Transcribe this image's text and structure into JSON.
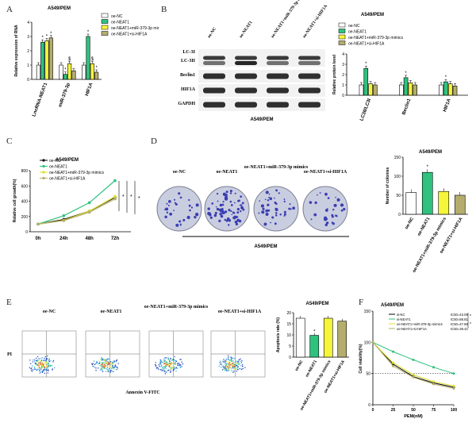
{
  "colors": {
    "nc": "#ffffff",
    "neat1": "#2ec27e",
    "mimics": "#f5f53a",
    "si": "#b5ad6e",
    "blot": "#1a1a1a",
    "dish": "#c9cde0",
    "dots": "#3a3fb0"
  },
  "panel_letters": [
    "A",
    "B",
    "C",
    "D",
    "E",
    "F"
  ],
  "legend4": [
    "oe-NC",
    "oe-NEAT1",
    "oe-NEAT1+miR-379-3p mimics",
    "oe-NEAT1+si-HIF1A"
  ],
  "legendF": [
    "si-NC",
    "si-NEAT1",
    "oe-NEAT1+miR-379-3p mimics",
    "oe-NEAT1+si-HIF1A"
  ],
  "ic50": [
    "IC50=43.08",
    "IC50=88.81",
    "IC50=47.88",
    "IC50=39.41"
  ],
  "panelB": {
    "col_labels": [
      "oe-NC",
      "oe-NEAT1",
      "oe-NEAT1+miR-379-3p mimics",
      "oe-NEAT1+si-HIF1A"
    ],
    "row_labels": [
      "LC-3I",
      "LC-3II",
      "Beclin1",
      "HIF1A",
      "GAPDH"
    ],
    "caption": "A549/PEM"
  },
  "panelD": {
    "dish_labels": [
      "oe-NC",
      "oe-NEAT1",
      "oe-NEAT1+miR-379-3p mimics",
      "oe-NEAT1+si-HIF1A"
    ],
    "caption": "A549/PEM"
  },
  "panelE": {
    "labels": [
      "oe-NC",
      "oe-NEAT1",
      "oe-NEAT1+miR-379-3p mimics",
      "oe-NEAT1+si-HIF1A"
    ],
    "xaxis": "Annexin V-FITC",
    "yaxis": "PI"
  },
  "chart_data": [
    {
      "id": "A",
      "type": "bar",
      "title": "A549/PEM",
      "ylabel": "Relative expression of RNA",
      "ylim": [
        0,
        4
      ],
      "yticks": [
        0,
        1,
        2,
        3,
        4
      ],
      "categories": [
        "LncRNA-NEAT1",
        "miR-379-3p",
        "HIF1A"
      ],
      "series": [
        {
          "name": "oe-NC",
          "values": [
            1.0,
            1.0,
            1.0
          ]
        },
        {
          "name": "oe-NEAT1",
          "values": [
            2.6,
            0.35,
            3.0
          ]
        },
        {
          "name": "oe-NEAT1+miR-379-3p mimics",
          "values": [
            2.7,
            1.1,
            1.1
          ]
        },
        {
          "name": "oe-NEAT1+si-HIF1A",
          "values": [
            2.9,
            0.6,
            0.5
          ]
        }
      ],
      "annotations": [
        "*",
        "*",
        "*",
        "*",
        "$",
        "*",
        "$",
        "*"
      ]
    },
    {
      "id": "B",
      "type": "bar",
      "title": "A549/PEM",
      "ylabel": "Relative protein level",
      "ylim": [
        0,
        4
      ],
      "yticks": [
        0,
        1,
        2,
        3,
        4
      ],
      "categories": [
        "LC3II/LC3I",
        "Beclin1",
        "HIF1A"
      ],
      "series": [
        {
          "name": "oe-NC",
          "values": [
            1.0,
            1.0,
            1.0
          ]
        },
        {
          "name": "oe-NEAT1",
          "values": [
            2.6,
            1.7,
            1.3
          ]
        },
        {
          "name": "oe-NEAT1+miR-379-3p mimics",
          "values": [
            1.1,
            1.2,
            1.1
          ]
        },
        {
          "name": "oe-NEAT1+si-HIF1A",
          "values": [
            1.0,
            1.0,
            0.9
          ]
        }
      ],
      "annotations": [
        "*",
        "*",
        "*"
      ]
    },
    {
      "id": "C",
      "type": "line",
      "title": "A549/PEM",
      "ylabel": "Relative cell growth(%)",
      "ylim": [
        0,
        800
      ],
      "yticks": [
        0,
        200,
        400,
        600,
        800
      ],
      "x": [
        "0h",
        "24h",
        "48h",
        "72h"
      ],
      "series": [
        {
          "name": "oe-NC",
          "values": [
            100,
            160,
            270,
            450
          ]
        },
        {
          "name": "oe-NEAT1",
          "values": [
            100,
            210,
            380,
            670
          ]
        },
        {
          "name": "oe-NEAT1+miR-379-3p mimics",
          "values": [
            100,
            150,
            270,
            460
          ]
        },
        {
          "name": "oe-NEAT1+si-HIF1A",
          "values": [
            100,
            145,
            255,
            430
          ]
        }
      ],
      "annotations": [
        "*",
        "*",
        "*"
      ]
    },
    {
      "id": "D",
      "type": "bar",
      "title": "A549/PEM",
      "ylabel": "Number of colonies",
      "ylim": [
        0,
        150
      ],
      "yticks": [
        0,
        50,
        100,
        150
      ],
      "categories": [
        "oe-NC",
        "oe-NEAT1",
        "oe-NEAT1+miR-379-3p mimics",
        "oe-NEAT1+si-HIF1A"
      ],
      "values": [
        57,
        110,
        60,
        50
      ],
      "annotations": [
        "*"
      ]
    },
    {
      "id": "E",
      "type": "bar",
      "title": "A549/PEM",
      "ylabel": "Apoptosis rate (%)",
      "ylim": [
        0,
        20
      ],
      "yticks": [
        0,
        5,
        10,
        15,
        20
      ],
      "categories": [
        "oe-NC",
        "oe-NEAT1",
        "oe-NEAT1+miR-379-3p mimics",
        "oe-NEAT1+si-HIF1A"
      ],
      "values": [
        17.5,
        9.8,
        17.5,
        16.2
      ],
      "annotations": [
        "*"
      ]
    },
    {
      "id": "F",
      "type": "line",
      "title": "A549/PEM",
      "xlabel": "PEM(nM)",
      "ylabel": "Cell viability(%)",
      "xlim": [
        0,
        100
      ],
      "ylim": [
        0,
        150
      ],
      "xticks": [
        0,
        25,
        50,
        75,
        100
      ],
      "yticks": [
        0,
        50,
        100,
        150
      ],
      "x": [
        0,
        25,
        50,
        75,
        100
      ],
      "series": [
        {
          "name": "si-NC",
          "values": [
            100,
            65,
            45,
            35,
            28
          ]
        },
        {
          "name": "si-NEAT1",
          "values": [
            100,
            85,
            72,
            60,
            50
          ]
        },
        {
          "name": "oe-NEAT1+miR-379-3p mimics",
          "values": [
            100,
            67,
            48,
            37,
            30
          ]
        },
        {
          "name": "oe-NEAT1+si-HIF1A",
          "values": [
            100,
            62,
            44,
            33,
            26
          ]
        }
      ]
    }
  ]
}
